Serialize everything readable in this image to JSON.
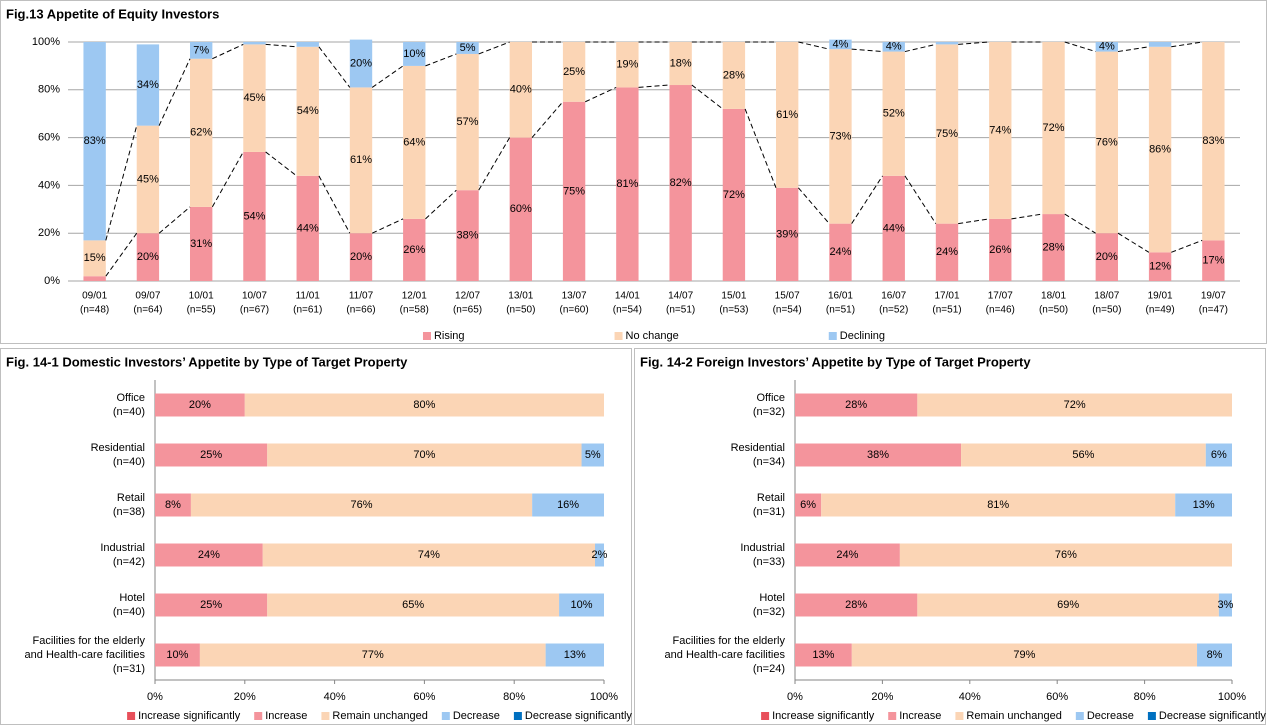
{
  "chart_data": [
    {
      "type": "bar",
      "stacked": true,
      "title": "Fig.13 Appetite of Equity Investors",
      "categories": [
        "09/01",
        "09/07",
        "10/01",
        "10/07",
        "11/01",
        "11/07",
        "12/01",
        "12/07",
        "13/01",
        "13/07",
        "14/01",
        "14/07",
        "15/01",
        "15/07",
        "16/01",
        "16/07",
        "17/01",
        "17/07",
        "18/01",
        "18/07",
        "19/01",
        "19/07"
      ],
      "sample_sizes": [
        "(n=48)",
        "(n=64)",
        "(n=55)",
        "(n=67)",
        "(n=61)",
        "(n=66)",
        "(n=58)",
        "(n=65)",
        "(n=50)",
        "(n=60)",
        "(n=54)",
        "(n=51)",
        "(n=53)",
        "(n=54)",
        "(n=51)",
        "(n=52)",
        "(n=51)",
        "(n=46)",
        "(n=50)",
        "(n=50)",
        "(n=49)",
        "(n=47)"
      ],
      "series": [
        {
          "name": "Rising",
          "color": "#f4949c",
          "values": [
            2,
            20,
            31,
            54,
            44,
            20,
            26,
            38,
            60,
            75,
            81,
            82,
            72,
            39,
            24,
            44,
            24,
            26,
            28,
            20,
            12,
            17
          ],
          "value_labels": [
            null,
            "20%",
            "31%",
            "54%",
            "44%",
            "20%",
            "26%",
            "38%",
            "60%",
            "75%",
            "81%",
            "82%",
            "72%",
            "39%",
            "24%",
            "44%",
            "24%",
            "26%",
            "28%",
            "20%",
            "12%",
            "17%"
          ]
        },
        {
          "name": "No change",
          "color": "#fbd5b5",
          "values": [
            15,
            45,
            62,
            45,
            54,
            61,
            64,
            57,
            40,
            25,
            19,
            18,
            28,
            61,
            73,
            52,
            75,
            74,
            72,
            76,
            86,
            83
          ],
          "value_labels": [
            "15%",
            "45%",
            "62%",
            "45%",
            "54%",
            "61%",
            "64%",
            "57%",
            "40%",
            "25%",
            "19%",
            "18%",
            "28%",
            "61%",
            "73%",
            "52%",
            "75%",
            "74%",
            "72%",
            "76%",
            "86%",
            "83%"
          ]
        },
        {
          "name": "Declining",
          "color": "#9dc8f2",
          "values": [
            83,
            34,
            7,
            1,
            2,
            20,
            10,
            5,
            0,
            0,
            0,
            0,
            0,
            0,
            4,
            4,
            1,
            0,
            0,
            4,
            2,
            0
          ],
          "value_labels": [
            "83%",
            "34%",
            "7%",
            null,
            null,
            "20%",
            "10%",
            "5%",
            null,
            null,
            null,
            null,
            null,
            null,
            "4%",
            "4%",
            null,
            null,
            null,
            "4%",
            null,
            null
          ]
        }
      ],
      "ylim": [
        0,
        100
      ],
      "yticks": [
        {
          "value": 0,
          "label": "0%"
        },
        {
          "value": 20,
          "label": "20%"
        },
        {
          "value": 40,
          "label": "40%"
        },
        {
          "value": 60,
          "label": "60%"
        },
        {
          "value": 80,
          "label": "80%"
        },
        {
          "value": 100,
          "label": "100%"
        }
      ],
      "grid": true,
      "legend": "bottom"
    },
    {
      "type": "barh",
      "stacked": true,
      "title": "Fig. 14-1 Domestic Investors’ Appetite by Type of Target Property",
      "categories": [
        "Office",
        "Residential",
        "Retail",
        "Industrial",
        "Hotel",
        "Facilities for the elderly and Health-care facilities"
      ],
      "sample_sizes": [
        "(n=40)",
        "(n=40)",
        "(n=38)",
        "(n=42)",
        "(n=40)",
        "(n=31)"
      ],
      "series": [
        {
          "name": "Increase significantly",
          "color": "#e8505b",
          "values": [
            0,
            0,
            0,
            0,
            0,
            0
          ],
          "value_labels": [
            null,
            null,
            null,
            null,
            null,
            null
          ]
        },
        {
          "name": "Increase",
          "color": "#f4949c",
          "values": [
            20,
            25,
            8,
            24,
            25,
            10
          ],
          "value_labels": [
            "20%",
            "25%",
            "8%",
            "24%",
            "25%",
            "10%"
          ]
        },
        {
          "name": "Remain unchanged",
          "color": "#fbd5b5",
          "values": [
            80,
            70,
            76,
            74,
            65,
            77
          ],
          "value_labels": [
            "80%",
            "70%",
            "76%",
            "74%",
            "65%",
            "77%"
          ]
        },
        {
          "name": "Decrease",
          "color": "#9dc8f2",
          "values": [
            0,
            5,
            16,
            2,
            10,
            13
          ],
          "value_labels": [
            null,
            "5%",
            "16%",
            "2%",
            "10%",
            "13%"
          ]
        },
        {
          "name": "Decrease significantly",
          "color": "#0070c0",
          "values": [
            0,
            0,
            0,
            0,
            0,
            0
          ],
          "value_labels": [
            null,
            null,
            null,
            null,
            null,
            null
          ]
        }
      ],
      "xlim": [
        0,
        100
      ],
      "xticks": [
        {
          "value": 0,
          "label": "0%"
        },
        {
          "value": 20,
          "label": "20%"
        },
        {
          "value": 40,
          "label": "40%"
        },
        {
          "value": 60,
          "label": "60%"
        },
        {
          "value": 80,
          "label": "80%"
        },
        {
          "value": 100,
          "label": "100%"
        }
      ],
      "legend": "bottom"
    },
    {
      "type": "barh",
      "stacked": true,
      "title": "Fig. 14-2 Foreign Investors’ Appetite by Type of Target Property",
      "categories": [
        "Office",
        "Residential",
        "Retail",
        "Industrial",
        "Hotel",
        "Facilities for the elderly and Health-care facilities"
      ],
      "sample_sizes": [
        "(n=32)",
        "(n=34)",
        "(n=31)",
        "(n=33)",
        "(n=32)",
        "(n=24)"
      ],
      "series": [
        {
          "name": "Increase significantly",
          "color": "#e8505b",
          "values": [
            0,
            0,
            0,
            0,
            0,
            0
          ],
          "value_labels": [
            null,
            null,
            null,
            null,
            null,
            null
          ]
        },
        {
          "name": "Increase",
          "color": "#f4949c",
          "values": [
            28,
            38,
            6,
            24,
            28,
            13
          ],
          "value_labels": [
            "28%",
            "38%",
            "6%",
            "24%",
            "28%",
            "13%"
          ]
        },
        {
          "name": "Remain unchanged",
          "color": "#fbd5b5",
          "values": [
            72,
            56,
            81,
            76,
            69,
            79
          ],
          "value_labels": [
            "72%",
            "56%",
            "81%",
            "76%",
            "69%",
            "79%"
          ]
        },
        {
          "name": "Decrease",
          "color": "#9dc8f2",
          "values": [
            0,
            6,
            13,
            0,
            3,
            8
          ],
          "value_labels": [
            null,
            "6%",
            "13%",
            null,
            "3%",
            "8%"
          ]
        },
        {
          "name": "Decrease significantly",
          "color": "#0070c0",
          "values": [
            0,
            0,
            0,
            0,
            0,
            0
          ],
          "value_labels": [
            null,
            null,
            null,
            null,
            null,
            null
          ]
        }
      ],
      "xlim": [
        0,
        100
      ],
      "xticks": [
        {
          "value": 0,
          "label": "0%"
        },
        {
          "value": 20,
          "label": "20%"
        },
        {
          "value": 40,
          "label": "40%"
        },
        {
          "value": 60,
          "label": "60%"
        },
        {
          "value": 80,
          "label": "80%"
        },
        {
          "value": 100,
          "label": "100%"
        }
      ],
      "legend": "bottom"
    }
  ]
}
